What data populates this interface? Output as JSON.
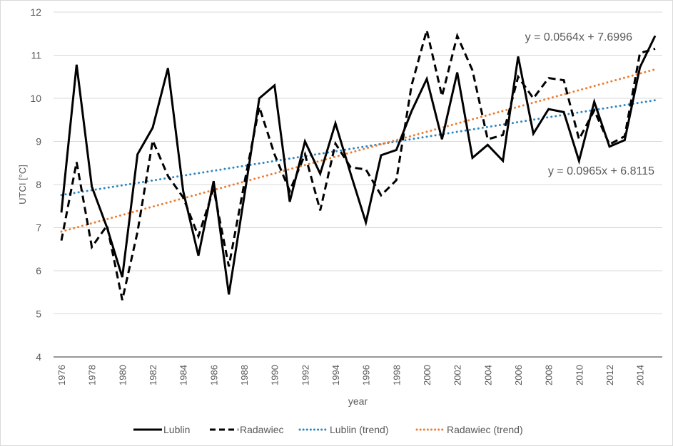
{
  "chart_data": {
    "type": "line",
    "title": "",
    "xlabel": "year",
    "ylabel": "UTCI [°C]",
    "ylim": [
      4,
      12
    ],
    "yticks": [
      4,
      5,
      6,
      7,
      8,
      9,
      10,
      11,
      12
    ],
    "grid": true,
    "legend_placement": "bottom",
    "x": [
      1976,
      1977,
      1978,
      1979,
      1980,
      1981,
      1982,
      1983,
      1984,
      1985,
      1986,
      1987,
      1988,
      1989,
      1990,
      1991,
      1992,
      1993,
      1994,
      1995,
      1996,
      1997,
      1998,
      1999,
      2000,
      2001,
      2002,
      2003,
      2004,
      2005,
      2006,
      2007,
      2008,
      2009,
      2010,
      2011,
      2012,
      2013,
      2014,
      2015
    ],
    "xtick_labels": [
      "1976",
      "1978",
      "1980",
      "1982",
      "1984",
      "1986",
      "1988",
      "1990",
      "1992",
      "1994",
      "1996",
      "1998",
      "2000",
      "2002",
      "2004",
      "2006",
      "2008",
      "2010",
      "2012",
      "2014"
    ],
    "series": [
      {
        "name": "Lublin",
        "style": "solid",
        "color": "#000000",
        "values": [
          7.35,
          10.78,
          7.95,
          7.0,
          5.85,
          8.7,
          9.32,
          10.7,
          7.85,
          6.35,
          8.08,
          5.45,
          7.7,
          10.0,
          10.3,
          7.6,
          9.0,
          8.25,
          9.42,
          8.25,
          7.12,
          8.68,
          8.8,
          9.7,
          10.45,
          9.05,
          10.6,
          8.62,
          8.92,
          8.55,
          10.97,
          9.18,
          9.75,
          9.68,
          8.55,
          9.92,
          8.88,
          9.03,
          10.72,
          11.45
        ]
      },
      {
        "name": "Radawiec",
        "style": "dashed",
        "color": "#000000",
        "values": [
          6.7,
          8.52,
          6.55,
          7.05,
          5.32,
          6.9,
          9.02,
          8.2,
          7.7,
          6.8,
          7.9,
          6.1,
          8.0,
          9.8,
          8.7,
          7.85,
          8.7,
          7.4,
          8.95,
          8.4,
          8.35,
          7.75,
          8.1,
          10.3,
          11.58,
          10.05,
          11.45,
          10.65,
          9.05,
          9.15,
          10.5,
          10.0,
          10.47,
          10.42,
          9.05,
          9.72,
          8.93,
          9.12,
          11.05,
          11.15
        ]
      }
    ],
    "trendlines": [
      {
        "name": "Lublin (trend)",
        "style": "dotted",
        "color": "#2e86c1",
        "slope": 0.0564,
        "intercept": 7.6996,
        "equation": "y = 0.0564x + 7.6996"
      },
      {
        "name": "Radawiec (trend)",
        "style": "dotted",
        "color": "#ed7d31",
        "slope": 0.0965,
        "intercept": 6.8115,
        "equation": "y = 0.0965x + 6.8115"
      }
    ]
  }
}
